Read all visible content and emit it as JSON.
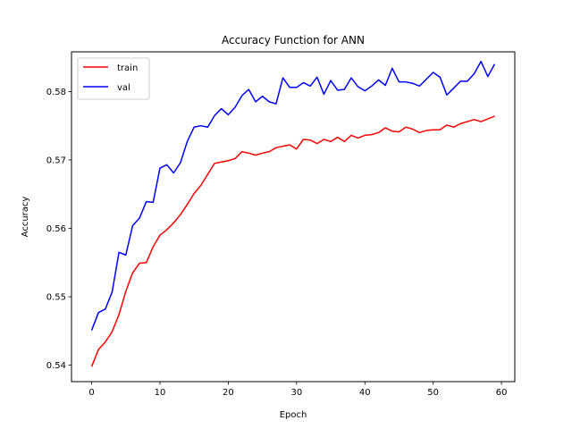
{
  "chart_data": {
    "type": "line",
    "title": "Accuracy Function for ANN",
    "xlabel": "Epoch",
    "ylabel": "Accuracy",
    "xlim": [
      -2.95,
      61.95
    ],
    "ylim": [
      0.5376,
      0.5858
    ],
    "xticks": [
      0,
      10,
      20,
      30,
      40,
      50,
      60
    ],
    "xtick_labels": [
      "0",
      "10",
      "20",
      "30",
      "40",
      "50",
      "60"
    ],
    "yticks": [
      0.54,
      0.55,
      0.56,
      0.57,
      0.58
    ],
    "ytick_labels": [
      "0.54",
      "0.55",
      "0.56",
      "0.57",
      "0.58"
    ],
    "grid": false,
    "legend_position": "top-left",
    "series": [
      {
        "name": "train",
        "color": "#ff0000",
        "x": [
          0,
          1,
          2,
          3,
          4,
          5,
          6,
          7,
          8,
          9,
          10,
          11,
          12,
          13,
          14,
          15,
          16,
          17,
          18,
          19,
          20,
          21,
          22,
          23,
          24,
          25,
          26,
          27,
          28,
          29,
          30,
          31,
          32,
          33,
          34,
          35,
          36,
          37,
          38,
          39,
          40,
          41,
          42,
          43,
          44,
          45,
          46,
          47,
          48,
          49,
          50,
          51,
          52,
          53,
          54,
          55,
          56,
          57,
          58,
          59
        ],
        "values": [
          0.5398,
          0.5423,
          0.5434,
          0.5449,
          0.5474,
          0.5508,
          0.5535,
          0.5549,
          0.555,
          0.5573,
          0.559,
          0.5598,
          0.5608,
          0.562,
          0.5635,
          0.5651,
          0.5663,
          0.5679,
          0.5695,
          0.5697,
          0.5699,
          0.5702,
          0.5712,
          0.571,
          0.5707,
          0.571,
          0.5712,
          0.5718,
          0.572,
          0.5722,
          0.5716,
          0.573,
          0.5729,
          0.5724,
          0.573,
          0.5727,
          0.5733,
          0.5727,
          0.5736,
          0.5732,
          0.5736,
          0.5737,
          0.574,
          0.5747,
          0.5742,
          0.5741,
          0.5748,
          0.5745,
          0.574,
          0.5743,
          0.5744,
          0.5744,
          0.5751,
          0.5748,
          0.5753,
          0.5756,
          0.5759,
          0.5756,
          0.576,
          0.5764
        ]
      },
      {
        "name": "val",
        "color": "#0000ff",
        "x": [
          0,
          1,
          2,
          3,
          4,
          5,
          6,
          7,
          8,
          9,
          10,
          11,
          12,
          13,
          14,
          15,
          16,
          17,
          18,
          19,
          20,
          21,
          22,
          23,
          24,
          25,
          26,
          27,
          28,
          29,
          30,
          31,
          32,
          33,
          34,
          35,
          36,
          37,
          38,
          39,
          40,
          41,
          42,
          43,
          44,
          45,
          46,
          47,
          48,
          49,
          50,
          51,
          52,
          53,
          54,
          55,
          56,
          57,
          58,
          59
        ],
        "values": [
          0.5451,
          0.5477,
          0.5482,
          0.5507,
          0.5565,
          0.5561,
          0.5604,
          0.5615,
          0.5639,
          0.5638,
          0.5688,
          0.5693,
          0.5681,
          0.5696,
          0.5727,
          0.5748,
          0.575,
          0.5748,
          0.5765,
          0.5775,
          0.5766,
          0.5777,
          0.5794,
          0.5803,
          0.5785,
          0.5793,
          0.5785,
          0.5782,
          0.582,
          0.5806,
          0.5806,
          0.5813,
          0.5808,
          0.5821,
          0.5796,
          0.5816,
          0.5802,
          0.5803,
          0.582,
          0.5807,
          0.5801,
          0.5808,
          0.5817,
          0.5809,
          0.5834,
          0.5814,
          0.5814,
          0.5812,
          0.5808,
          0.5818,
          0.5828,
          0.5821,
          0.5795,
          0.5805,
          0.5815,
          0.5815,
          0.5826,
          0.5844,
          0.5822,
          0.584
        ]
      }
    ]
  }
}
